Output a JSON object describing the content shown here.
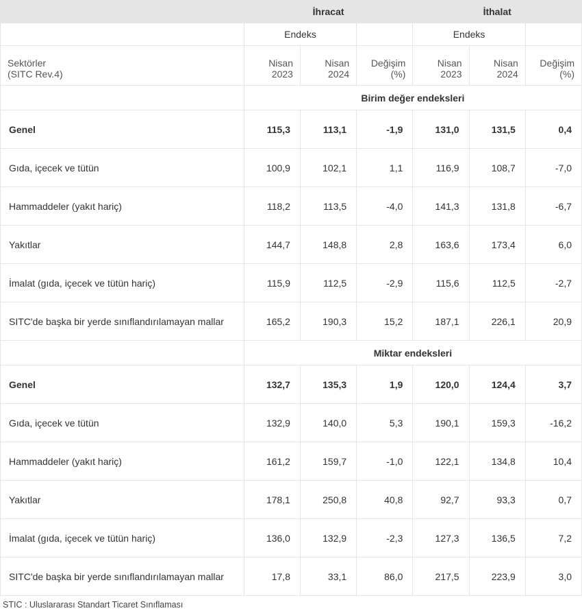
{
  "header": {
    "export": "İhracat",
    "import": "İthalat",
    "index": "Endeks",
    "sector_label_l1": "Sektörler",
    "sector_label_l2": "(SITC Rev.4)",
    "col_apr_2023_l1": "Nisan",
    "col_apr_2023_l2": "2023",
    "col_apr_2024_l1": "Nisan",
    "col_apr_2024_l2": "2024",
    "col_change_l1": "Değişim",
    "col_change_l2": "(%)"
  },
  "sections": {
    "unit_value": "Birim değer endeksleri",
    "quantity": "Miktar endeksleri"
  },
  "row_labels": {
    "general": "Genel",
    "food": "Gıda, içecek ve tütün",
    "raw": "Hammaddeler (yakıt hariç)",
    "fuels": "Yakıtlar",
    "manuf": "İmalat (gıda, içecek ve tütün hariç)",
    "other": "SITC'de başka bir yerde sınıflandırılamayan mallar"
  },
  "unit_value": {
    "general": {
      "e23": "115,3",
      "e24": "113,1",
      "ec": "-1,9",
      "i23": "131,0",
      "i24": "131,5",
      "ic": "0,4"
    },
    "food": {
      "e23": "100,9",
      "e24": "102,1",
      "ec": "1,1",
      "i23": "116,9",
      "i24": "108,7",
      "ic": "-7,0"
    },
    "raw": {
      "e23": "118,2",
      "e24": "113,5",
      "ec": "-4,0",
      "i23": "141,3",
      "i24": "131,8",
      "ic": "-6,7"
    },
    "fuels": {
      "e23": "144,7",
      "e24": "148,8",
      "ec": "2,8",
      "i23": "163,6",
      "i24": "173,4",
      "ic": "6,0"
    },
    "manuf": {
      "e23": "115,9",
      "e24": "112,5",
      "ec": "-2,9",
      "i23": "115,6",
      "i24": "112,5",
      "ic": "-2,7"
    },
    "other": {
      "e23": "165,2",
      "e24": "190,3",
      "ec": "15,2",
      "i23": "187,1",
      "i24": "226,1",
      "ic": "20,9"
    }
  },
  "quantity": {
    "general": {
      "e23": "132,7",
      "e24": "135,3",
      "ec": "1,9",
      "i23": "120,0",
      "i24": "124,4",
      "ic": "3,7"
    },
    "food": {
      "e23": "132,9",
      "e24": "140,0",
      "ec": "5,3",
      "i23": "190,1",
      "i24": "159,3",
      "ic": "-16,2"
    },
    "raw": {
      "e23": "161,2",
      "e24": "159,7",
      "ec": "-1,0",
      "i23": "122,1",
      "i24": "134,8",
      "ic": "10,4"
    },
    "fuels": {
      "e23": "178,1",
      "e24": "250,8",
      "ec": "40,8",
      "i23": "92,7",
      "i24": "93,3",
      "ic": "0,7"
    },
    "manuf": {
      "e23": "136,0",
      "e24": "132,9",
      "ec": "-2,3",
      "i23": "127,3",
      "i24": "136,5",
      "ic": "7,2"
    },
    "other": {
      "e23": "17,8",
      "e24": "33,1",
      "ec": "86,0",
      "i23": "217,5",
      "i24": "223,9",
      "ic": "3,0"
    }
  },
  "footnote": "STIC : Uluslararası Standart Ticaret Sınıflaması"
}
